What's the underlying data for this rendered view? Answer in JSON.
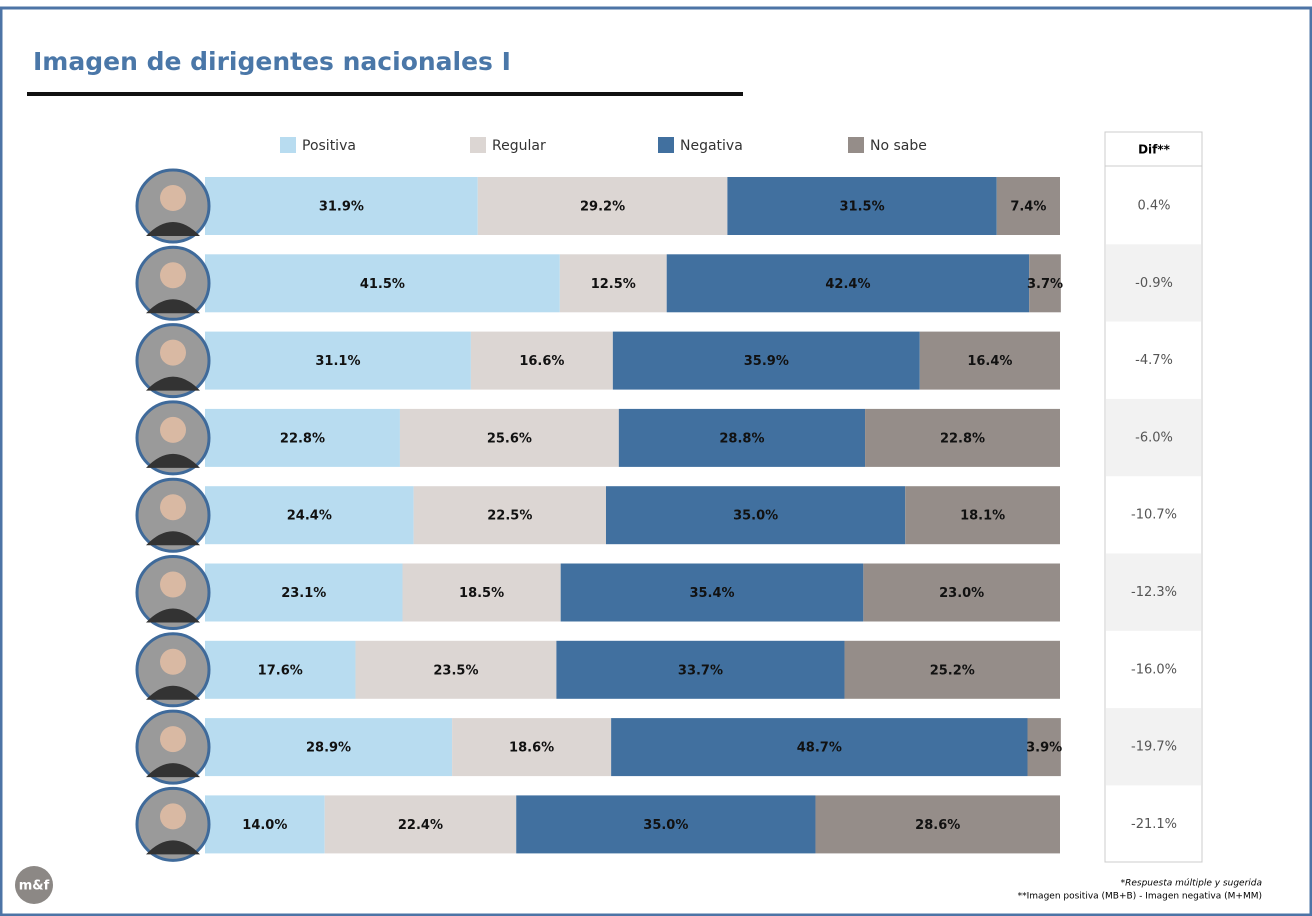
{
  "chart_data": {
    "type": "stacked-bar-horizontal",
    "title": "Imagen de dirigentes nacionales I",
    "categories": [
      null,
      null,
      null,
      null,
      null,
      null,
      null,
      null,
      null
    ],
    "xlim": [
      0,
      100
    ],
    "series": [
      {
        "name": "Positiva",
        "color": "#b8dcf0",
        "values": [
          31.9,
          41.5,
          31.1,
          22.8,
          24.4,
          23.1,
          17.6,
          28.9,
          14.0
        ],
        "value_labels": [
          "31.9%",
          "41.5%",
          "31.1%",
          "22.8%",
          "24.4%",
          "23.1%",
          "17.6%",
          "28.9%",
          "14.0%"
        ]
      },
      {
        "name": "Regular",
        "color": "#dcd6d3",
        "values": [
          29.2,
          12.5,
          16.6,
          25.6,
          22.5,
          18.5,
          23.5,
          18.6,
          22.4
        ],
        "value_labels": [
          "29.2%",
          "12.5%",
          "16.6%",
          "25.6%",
          "22.5%",
          "18.5%",
          "23.5%",
          "18.6%",
          "22.4%"
        ]
      },
      {
        "name": "Negativa",
        "color": "#41709f",
        "values": [
          31.5,
          42.4,
          35.9,
          28.8,
          35.0,
          35.4,
          33.7,
          48.7,
          35.0
        ],
        "value_labels": [
          "31.5%",
          "42.4%",
          "35.9%",
          "28.8%",
          "35.0%",
          "35.4%",
          "33.7%",
          "48.7%",
          "35.0%"
        ]
      },
      {
        "name": "No sabe",
        "color": "#958d89",
        "values": [
          7.4,
          3.7,
          16.4,
          22.8,
          18.1,
          23.0,
          25.2,
          3.9,
          28.6
        ],
        "value_labels": [
          "7.4%",
          "3.7%",
          "16.4%",
          "22.8%",
          "18.1%",
          "23.0%",
          "25.2%",
          "3.9%",
          "28.6%"
        ]
      }
    ],
    "dif": {
      "header": "Dif**",
      "rows": [
        "0.4%",
        "-0.9%",
        "-4.7%",
        "-6.0%",
        "-10.7%",
        "-12.3%",
        "-16.0%",
        "-19.7%",
        "-21.1%"
      ]
    },
    "footnotes": [
      "*Respuesta múltiple y sugerida",
      "**Imagen positiva (MB+B) - Imagen negativa (M+MM)"
    ],
    "logo": "m&f"
  }
}
